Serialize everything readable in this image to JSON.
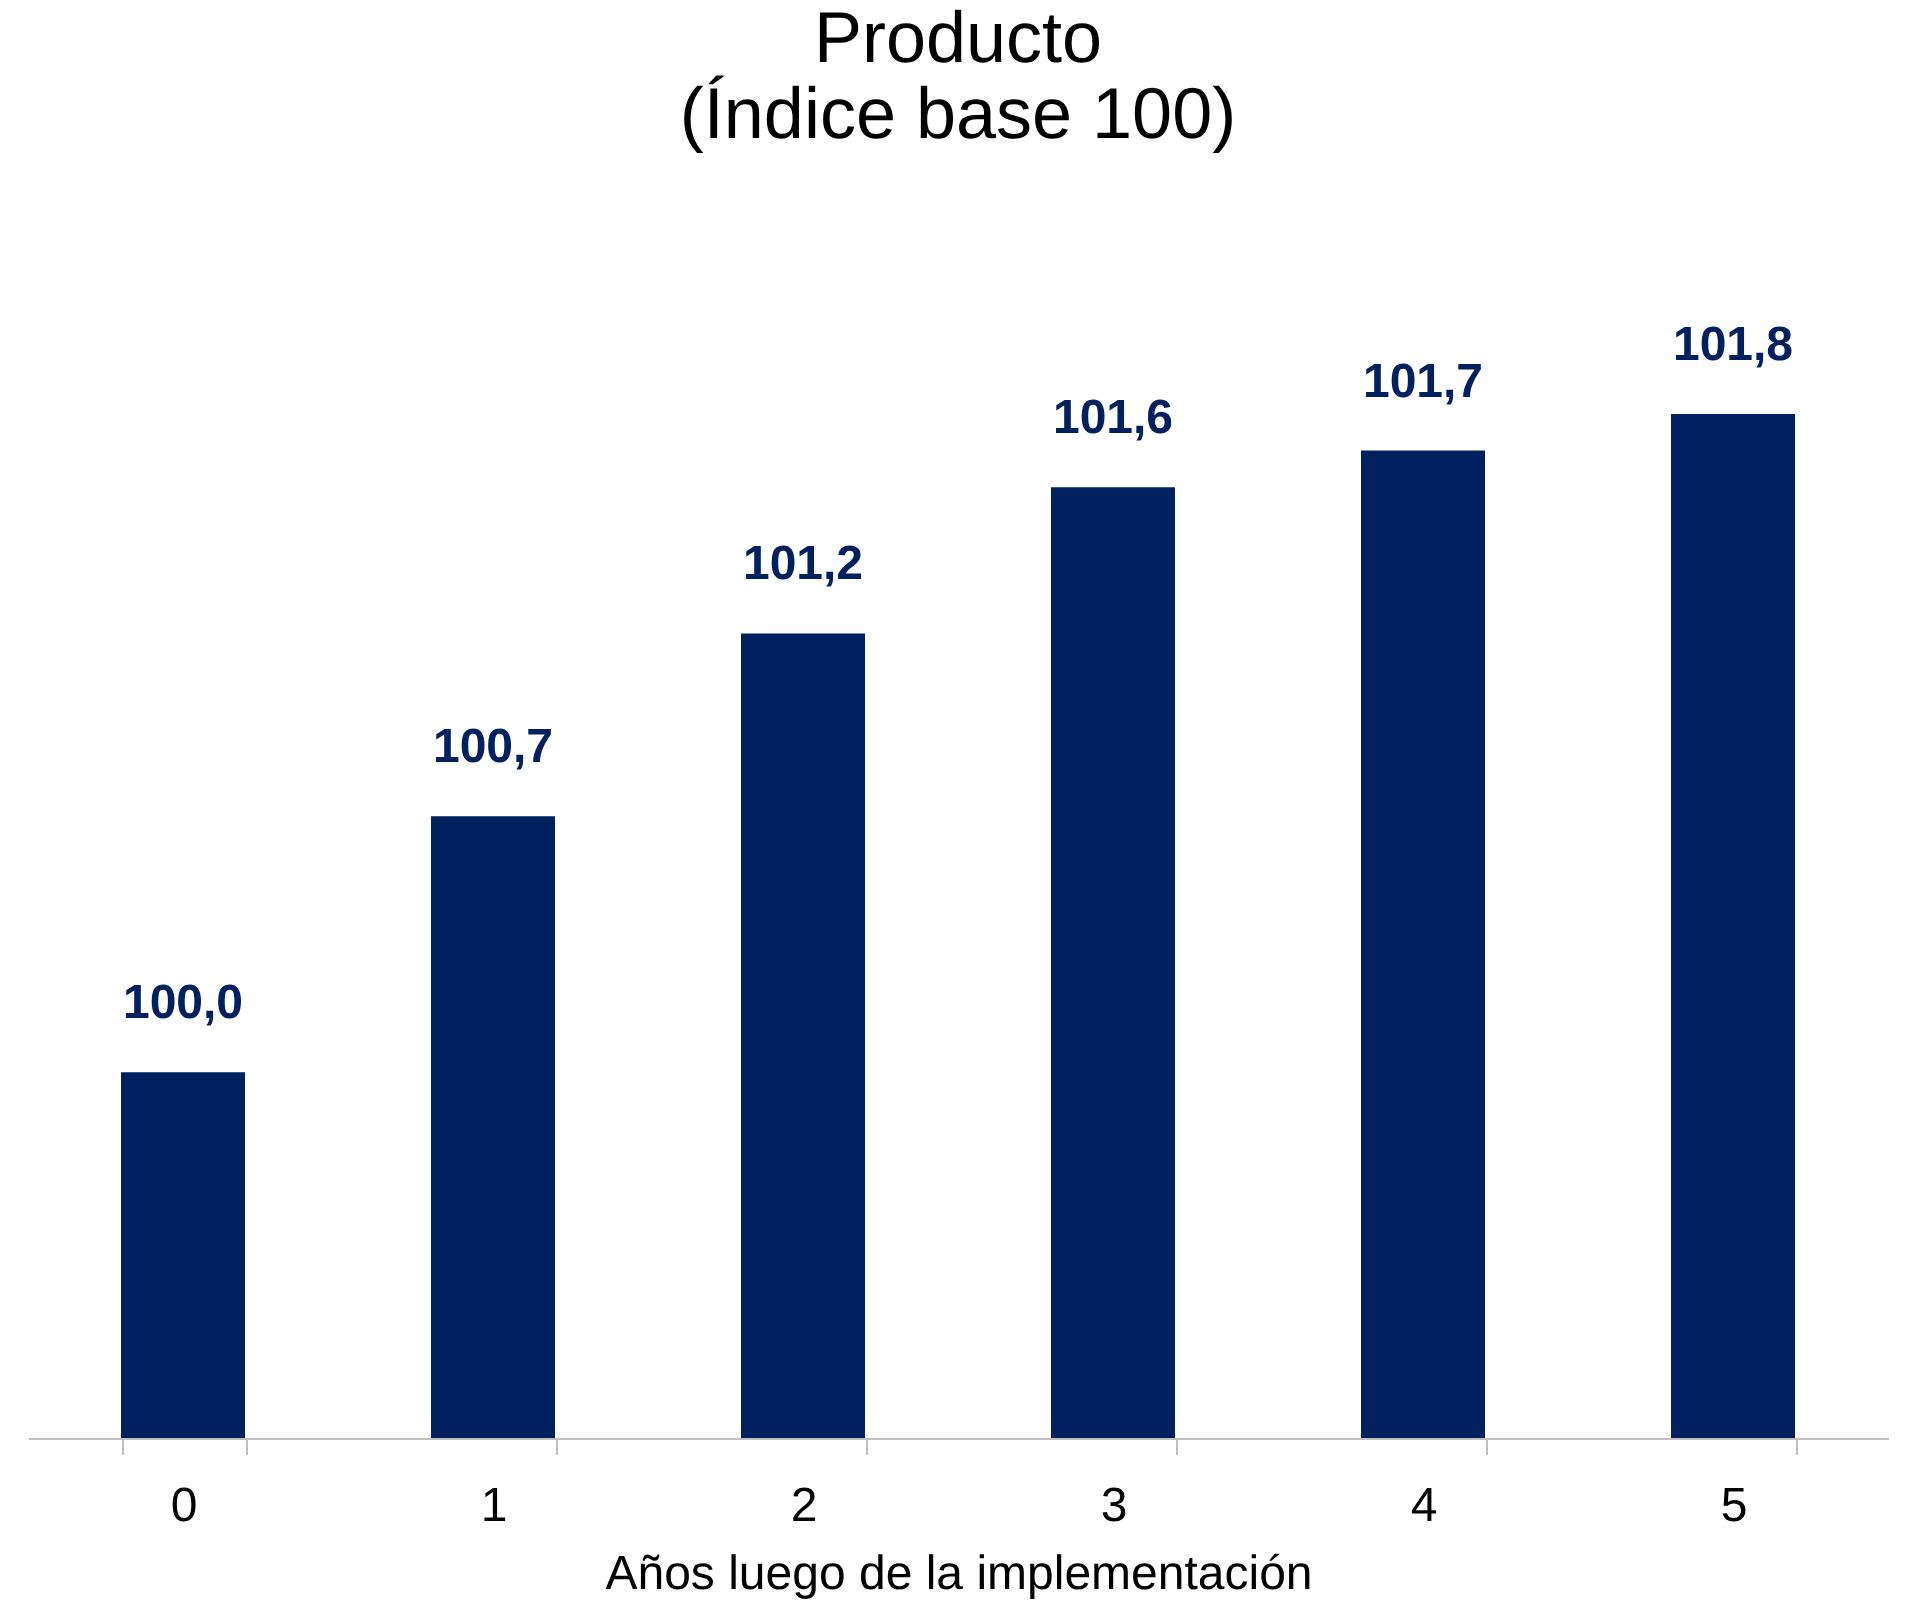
{
  "chart_data": {
    "type": "bar",
    "title": "Producto",
    "subtitle": "(Índice base 100)",
    "xlabel": "Años luego de la implementación",
    "categories": [
      "0",
      "1",
      "2",
      "3",
      "4",
      "5"
    ],
    "values": [
      100.0,
      100.7,
      101.2,
      101.6,
      101.7,
      101.8
    ],
    "value_labels": [
      "100,0",
      "100,7",
      "101,2",
      "101,6",
      "101,7",
      "101,8"
    ],
    "color": "#002060",
    "ylim": [
      99,
      101.8
    ],
    "tick_labels": "x"
  }
}
